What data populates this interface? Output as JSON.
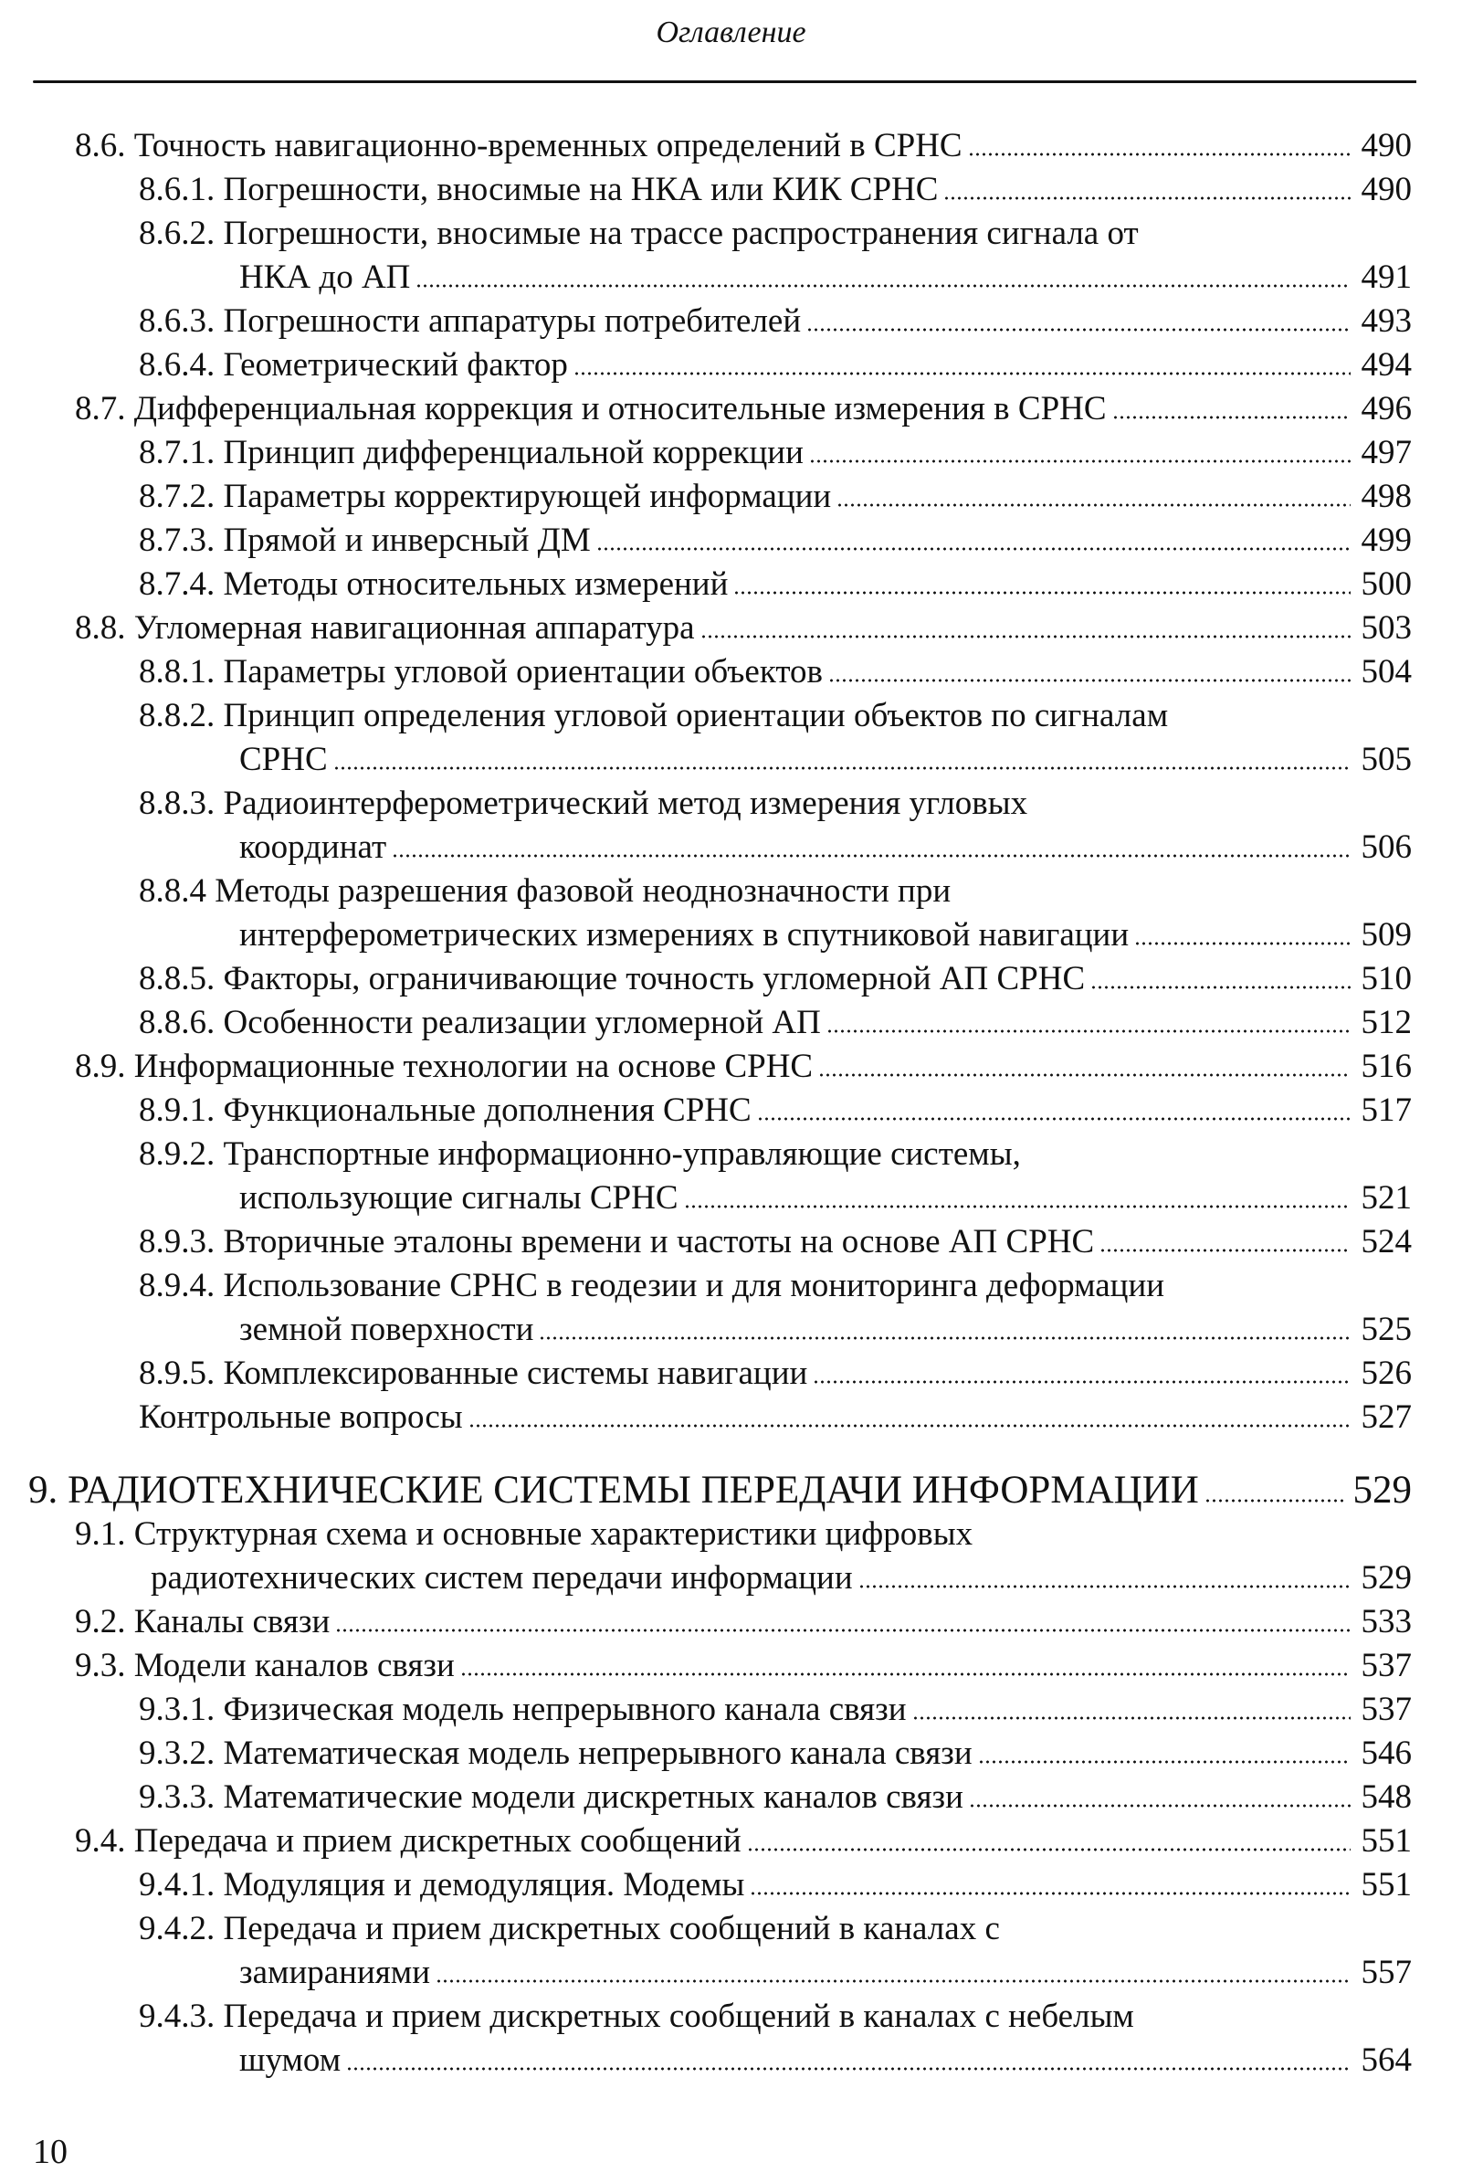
{
  "running_head": "Оглавление",
  "folio": "10",
  "entries": [
    {
      "level": 1,
      "text": "8.6. Точность навигационно-временных определений в СРНС",
      "page": "490"
    },
    {
      "level": 2,
      "text": "8.6.1. Погрешности, вносимые на НКА или КИК СРНС",
      "page": "490"
    },
    {
      "level": 2,
      "text": "8.6.2. Погрешности, вносимые на трассе  распространения сигнала от",
      "cont": "НКА до АП",
      "page": "491"
    },
    {
      "level": 2,
      "text": "8.6.3. Погрешности аппаратуры потребителей",
      "page": "493"
    },
    {
      "level": 2,
      "text": "8.6.4. Геометрический фактор",
      "page": "494"
    },
    {
      "level": 1,
      "text": "8.7. Дифференциальная коррекция  и относительные измерения в СРНС",
      "page": "496"
    },
    {
      "level": 2,
      "text": "8.7.1. Принцип дифференциальной коррекции",
      "page": "497"
    },
    {
      "level": 2,
      "text": "8.7.2. Параметры корректирующей информации",
      "page": "498"
    },
    {
      "level": 2,
      "text": "8.7.3. Прямой и инверсный ДМ",
      "page": "499"
    },
    {
      "level": 2,
      "text": "8.7.4. Методы относительных измерений",
      "page": "500"
    },
    {
      "level": 1,
      "text": "8.8. Угломерная навигационная аппаратура",
      "page": "503"
    },
    {
      "level": 2,
      "text": "8.8.1. Параметры угловой ориентации объектов",
      "page": "504"
    },
    {
      "level": 2,
      "text": "8.8.2. Принцип определения угловой ориентации объектов  по сигналам",
      "cont": "СРНС",
      "page": "505"
    },
    {
      "level": 2,
      "text": "8.8.3. Радиоинтерферометрический метод измерения  угловых",
      "cont": "координат",
      "page": "506"
    },
    {
      "level": 2,
      "text": "8.8.4 Методы разрешения фазовой неоднозначности  при",
      "cont": "интерферометрических измерениях в спутниковой навигации",
      "page": "509"
    },
    {
      "level": 2,
      "text": "8.8.5. Факторы, ограничивающие точность угломерной АП СРНС",
      "page": "510"
    },
    {
      "level": 2,
      "text": "8.8.6. Особенности реализации угломерной АП",
      "page": "512"
    },
    {
      "level": 1,
      "text": "8.9. Информационные технологии на основе СРНС",
      "page": "516"
    },
    {
      "level": 2,
      "text": "8.9.1. Функциональные дополнения СРНС",
      "page": "517"
    },
    {
      "level": 2,
      "text": "8.9.2. Транспортные информационно-управляющие системы,",
      "cont": "использующие сигналы СРНС",
      "page": "521"
    },
    {
      "level": 2,
      "text": "8.9.3. Вторичные эталоны времени и частоты на основе АП СРНС",
      "page": "524"
    },
    {
      "level": 2,
      "text": "8.9.4. Использование СРНС в геодезии и для мониторинга деформации",
      "cont": "земной поверхности",
      "page": "525"
    },
    {
      "level": 2,
      "text": "8.9.5. Комплексированные системы навигации",
      "page": "526"
    },
    {
      "level": 2,
      "text": "Контрольные вопросы",
      "page": "527"
    },
    {
      "level": 0,
      "text": "9. РАДИОТЕХНИЧЕСКИЕ СИСТЕМЫ  ПЕРЕДАЧИ ИНФОРМАЦИИ",
      "page": "529"
    },
    {
      "level": 1,
      "text": "9.1. Структурная схема и основные характеристики  цифровых",
      "cont": "радиотехнических систем передачи информации",
      "page": "529"
    },
    {
      "level": 1,
      "text": "9.2. Каналы связи",
      "page": "533"
    },
    {
      "level": 1,
      "text": "9.3. Модели каналов связи",
      "page": "537"
    },
    {
      "level": 2,
      "text": "9.3.1. Физическая модель непрерывного канала связи",
      "page": "537"
    },
    {
      "level": 2,
      "text": "9.3.2. Математическая модель непрерывного канала связи",
      "page": "546"
    },
    {
      "level": 2,
      "text": "9.3.3. Математические модели дискретных каналов связи",
      "page": "548"
    },
    {
      "level": 1,
      "text": "9.4. Передача и прием дискретных сообщений",
      "page": "551"
    },
    {
      "level": 2,
      "text": "9.4.1. Модуляция и демодуляция. Модемы",
      "page": "551"
    },
    {
      "level": 2,
      "text": "9.4.2. Передача и прием дискретных сообщений  в каналах с",
      "cont": "замираниями",
      "page": "557"
    },
    {
      "level": 2,
      "text": "9.4.3. Передача и прием дискретных сообщений в каналах  с небелым",
      "cont": "шумом",
      "page": "564"
    }
  ]
}
